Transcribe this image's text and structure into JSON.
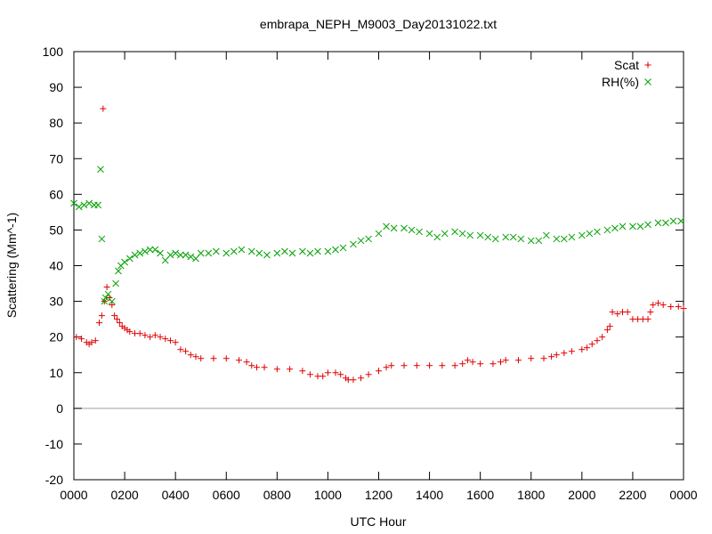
{
  "chart_data": {
    "type": "scatter",
    "title": "embrapa_NEPH_M9003_Day20131022.txt",
    "xlabel": "UTC Hour",
    "ylabel": "Scattering (Mm^-1)",
    "xlim": [
      0,
      24
    ],
    "ylim": [
      -20,
      100
    ],
    "x_ticks": [
      {
        "value": 0,
        "label": "0000"
      },
      {
        "value": 2,
        "label": "0200"
      },
      {
        "value": 4,
        "label": "0400"
      },
      {
        "value": 6,
        "label": "0600"
      },
      {
        "value": 8,
        "label": "0800"
      },
      {
        "value": 10,
        "label": "1000"
      },
      {
        "value": 12,
        "label": "1200"
      },
      {
        "value": 14,
        "label": "1400"
      },
      {
        "value": 16,
        "label": "1600"
      },
      {
        "value": 18,
        "label": "1800"
      },
      {
        "value": 20,
        "label": "2000"
      },
      {
        "value": 22,
        "label": "2200"
      },
      {
        "value": 24,
        "label": "0000"
      }
    ],
    "y_ticks": [
      -20,
      -10,
      0,
      10,
      20,
      30,
      40,
      50,
      60,
      70,
      80,
      90,
      100
    ],
    "zero_line": true,
    "grid": false,
    "legend_position": "top-right",
    "series": [
      {
        "name": "Scat",
        "marker": "+",
        "color": "#e00000",
        "points": [
          [
            0.1,
            20.0
          ],
          [
            0.3,
            19.5
          ],
          [
            0.5,
            18.5
          ],
          [
            0.6,
            18.0
          ],
          [
            0.7,
            18.5
          ],
          [
            0.85,
            19.0
          ],
          [
            1.0,
            24.0
          ],
          [
            1.1,
            26.0
          ],
          [
            1.15,
            84.0
          ],
          [
            1.2,
            30.0
          ],
          [
            1.3,
            34.0
          ],
          [
            1.4,
            31.0
          ],
          [
            1.5,
            29.0
          ],
          [
            1.6,
            26.0
          ],
          [
            1.7,
            25.0
          ],
          [
            1.8,
            24.0
          ],
          [
            1.9,
            23.0
          ],
          [
            2.0,
            22.5
          ],
          [
            2.1,
            22.0
          ],
          [
            2.2,
            21.5
          ],
          [
            2.4,
            21.0
          ],
          [
            2.6,
            21.0
          ],
          [
            2.8,
            20.5
          ],
          [
            3.0,
            20.0
          ],
          [
            3.2,
            20.5
          ],
          [
            3.4,
            20.0
          ],
          [
            3.6,
            19.5
          ],
          [
            3.8,
            19.0
          ],
          [
            4.0,
            18.5
          ],
          [
            4.2,
            16.5
          ],
          [
            4.4,
            16.0
          ],
          [
            4.6,
            15.0
          ],
          [
            4.8,
            14.5
          ],
          [
            5.0,
            14.0
          ],
          [
            5.5,
            14.0
          ],
          [
            6.0,
            14.0
          ],
          [
            6.5,
            13.5
          ],
          [
            6.8,
            13.0
          ],
          [
            7.0,
            12.0
          ],
          [
            7.2,
            11.5
          ],
          [
            7.5,
            11.5
          ],
          [
            8.0,
            11.0
          ],
          [
            8.5,
            11.0
          ],
          [
            9.0,
            10.5
          ],
          [
            9.3,
            9.5
          ],
          [
            9.6,
            9.0
          ],
          [
            9.8,
            9.0
          ],
          [
            10.0,
            10.0
          ],
          [
            10.3,
            10.0
          ],
          [
            10.5,
            9.5
          ],
          [
            10.7,
            8.5
          ],
          [
            10.8,
            8.0
          ],
          [
            11.0,
            8.0
          ],
          [
            11.3,
            8.5
          ],
          [
            11.6,
            9.5
          ],
          [
            12.0,
            10.5
          ],
          [
            12.3,
            11.5
          ],
          [
            12.5,
            12.0
          ],
          [
            13.0,
            12.0
          ],
          [
            13.5,
            12.0
          ],
          [
            14.0,
            12.0
          ],
          [
            14.5,
            12.0
          ],
          [
            15.0,
            12.0
          ],
          [
            15.3,
            12.5
          ],
          [
            15.5,
            13.5
          ],
          [
            15.7,
            13.0
          ],
          [
            16.0,
            12.5
          ],
          [
            16.5,
            12.5
          ],
          [
            16.8,
            13.0
          ],
          [
            17.0,
            13.5
          ],
          [
            17.5,
            13.5
          ],
          [
            18.0,
            14.0
          ],
          [
            18.5,
            14.0
          ],
          [
            18.8,
            14.5
          ],
          [
            19.0,
            15.0
          ],
          [
            19.3,
            15.5
          ],
          [
            19.6,
            16.0
          ],
          [
            20.0,
            16.5
          ],
          [
            20.2,
            17.0
          ],
          [
            20.4,
            18.0
          ],
          [
            20.6,
            19.0
          ],
          [
            20.8,
            20.0
          ],
          [
            21.0,
            22.0
          ],
          [
            21.1,
            23.0
          ],
          [
            21.2,
            27.0
          ],
          [
            21.4,
            26.5
          ],
          [
            21.6,
            27.0
          ],
          [
            21.8,
            27.0
          ],
          [
            22.0,
            25.0
          ],
          [
            22.2,
            25.0
          ],
          [
            22.4,
            25.0
          ],
          [
            22.6,
            25.0
          ],
          [
            22.7,
            27.0
          ],
          [
            22.8,
            29.0
          ],
          [
            23.0,
            29.5
          ],
          [
            23.2,
            29.0
          ],
          [
            23.5,
            28.5
          ],
          [
            23.8,
            28.5
          ],
          [
            24.0,
            28.0
          ]
        ]
      },
      {
        "name": "RH(%)",
        "marker": "x",
        "color": "#00a000",
        "points": [
          [
            0.0,
            57.5
          ],
          [
            0.2,
            56.5
          ],
          [
            0.4,
            57.0
          ],
          [
            0.6,
            57.5
          ],
          [
            0.8,
            57.0
          ],
          [
            0.95,
            57.0
          ],
          [
            1.05,
            67.0
          ],
          [
            1.1,
            47.5
          ],
          [
            1.2,
            30.0
          ],
          [
            1.25,
            31.0
          ],
          [
            1.35,
            32.0
          ],
          [
            1.5,
            30.0
          ],
          [
            1.65,
            35.0
          ],
          [
            1.75,
            38.5
          ],
          [
            1.85,
            40.0
          ],
          [
            2.0,
            41.0
          ],
          [
            2.2,
            42.0
          ],
          [
            2.4,
            43.0
          ],
          [
            2.6,
            43.5
          ],
          [
            2.8,
            44.0
          ],
          [
            3.0,
            44.5
          ],
          [
            3.2,
            44.5
          ],
          [
            3.4,
            43.5
          ],
          [
            3.6,
            41.5
          ],
          [
            3.8,
            43.0
          ],
          [
            4.0,
            43.5
          ],
          [
            4.2,
            43.0
          ],
          [
            4.4,
            43.0
          ],
          [
            4.6,
            42.5
          ],
          [
            4.8,
            42.0
          ],
          [
            5.0,
            43.5
          ],
          [
            5.3,
            43.5
          ],
          [
            5.6,
            44.0
          ],
          [
            6.0,
            43.5
          ],
          [
            6.3,
            44.0
          ],
          [
            6.6,
            44.5
          ],
          [
            7.0,
            44.0
          ],
          [
            7.3,
            43.5
          ],
          [
            7.6,
            43.0
          ],
          [
            8.0,
            43.5
          ],
          [
            8.3,
            44.0
          ],
          [
            8.6,
            43.5
          ],
          [
            9.0,
            44.0
          ],
          [
            9.3,
            43.5
          ],
          [
            9.6,
            44.0
          ],
          [
            10.0,
            44.0
          ],
          [
            10.3,
            44.5
          ],
          [
            10.6,
            45.0
          ],
          [
            11.0,
            46.0
          ],
          [
            11.3,
            47.0
          ],
          [
            11.6,
            47.5
          ],
          [
            12.0,
            49.0
          ],
          [
            12.3,
            51.0
          ],
          [
            12.6,
            50.5
          ],
          [
            13.0,
            50.5
          ],
          [
            13.3,
            50.0
          ],
          [
            13.6,
            49.5
          ],
          [
            14.0,
            49.0
          ],
          [
            14.3,
            48.0
          ],
          [
            14.6,
            49.0
          ],
          [
            15.0,
            49.5
          ],
          [
            15.3,
            49.0
          ],
          [
            15.6,
            48.5
          ],
          [
            16.0,
            48.5
          ],
          [
            16.3,
            48.0
          ],
          [
            16.6,
            47.5
          ],
          [
            17.0,
            48.0
          ],
          [
            17.3,
            48.0
          ],
          [
            17.6,
            47.5
          ],
          [
            18.0,
            47.0
          ],
          [
            18.3,
            47.0
          ],
          [
            18.6,
            48.5
          ],
          [
            19.0,
            47.5
          ],
          [
            19.3,
            47.5
          ],
          [
            19.6,
            48.0
          ],
          [
            20.0,
            48.5
          ],
          [
            20.3,
            49.0
          ],
          [
            20.6,
            49.5
          ],
          [
            21.0,
            50.0
          ],
          [
            21.3,
            50.5
          ],
          [
            21.6,
            51.0
          ],
          [
            22.0,
            51.0
          ],
          [
            22.3,
            51.0
          ],
          [
            22.6,
            51.5
          ],
          [
            23.0,
            52.0
          ],
          [
            23.3,
            52.0
          ],
          [
            23.6,
            52.5
          ],
          [
            23.9,
            52.5
          ]
        ]
      }
    ]
  }
}
